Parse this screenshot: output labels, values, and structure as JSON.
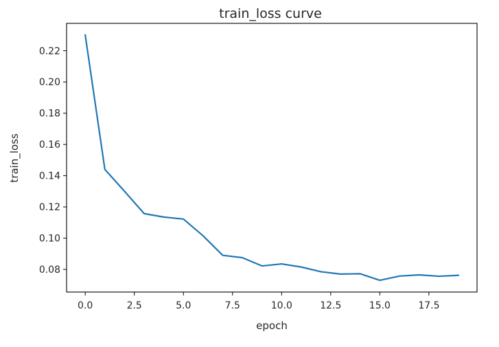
{
  "chart_data": {
    "type": "line",
    "title": "train_loss curve",
    "xlabel": "epoch",
    "ylabel": "train_loss",
    "xlim": [
      -0.95,
      19.95
    ],
    "ylim": [
      0.0655,
      0.2375
    ],
    "xticks": [
      "0.0",
      "2.5",
      "5.0",
      "7.5",
      "10.0",
      "12.5",
      "15.0",
      "17.5"
    ],
    "yticks": [
      "0.08",
      "0.10",
      "0.12",
      "0.14",
      "0.16",
      "0.18",
      "0.20",
      "0.22"
    ],
    "grid": false,
    "series": [
      {
        "color": "#1f77b4",
        "x": [
          0,
          1,
          2,
          3,
          4,
          5,
          6,
          7,
          8,
          9,
          10,
          11,
          12,
          13,
          14,
          15,
          16,
          17,
          18,
          19
        ],
        "y": [
          0.23,
          0.144,
          0.13,
          0.1157,
          0.1135,
          0.1122,
          0.1015,
          0.089,
          0.0875,
          0.0822,
          0.0835,
          0.0815,
          0.0785,
          0.077,
          0.0772,
          0.073,
          0.0757,
          0.0765,
          0.0756,
          0.0762
        ]
      }
    ]
  }
}
